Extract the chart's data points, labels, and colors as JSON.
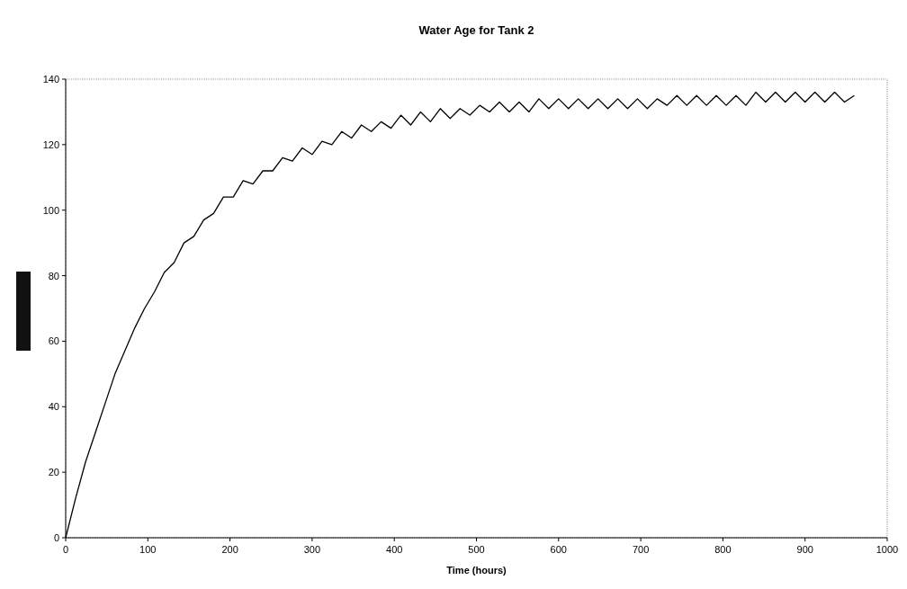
{
  "chart_data": {
    "type": "line",
    "title": "Water Age for Tank 2",
    "xlabel": "Time (hours)",
    "x": [
      0,
      12,
      24,
      36,
      48,
      60,
      72,
      84,
      96,
      108,
      120,
      132,
      144,
      156,
      168,
      180,
      192,
      204,
      216,
      228,
      240,
      252,
      264,
      276,
      288,
      300,
      312,
      324,
      336,
      348,
      360,
      372,
      384,
      396,
      408,
      420,
      432,
      444,
      456,
      468,
      480,
      492,
      504,
      516,
      528,
      540,
      552,
      564,
      576,
      588,
      600,
      612,
      624,
      636,
      648,
      660,
      672,
      684,
      696,
      708,
      720,
      732,
      744,
      756,
      768,
      780,
      792,
      804,
      816,
      828,
      840,
      852,
      864,
      876,
      888,
      900,
      912,
      924,
      936,
      948,
      960
    ],
    "series": [
      {
        "color": "#000000",
        "values": [
          0,
          12,
          23,
          32,
          41,
          50,
          57,
          64,
          70,
          75,
          81,
          84,
          90,
          92,
          97,
          99,
          104,
          104,
          109,
          108,
          112,
          112,
          116,
          115,
          119,
          117,
          121,
          120,
          124,
          122,
          126,
          124,
          127,
          125,
          129,
          126,
          130,
          127,
          131,
          128,
          131,
          129,
          132,
          130,
          133,
          130,
          133,
          130,
          134,
          131,
          134,
          131,
          134,
          131,
          134,
          131,
          134,
          131,
          134,
          131,
          134,
          132,
          135,
          132,
          135,
          132,
          135,
          132,
          135,
          132,
          136,
          133,
          136,
          133,
          136,
          133,
          136,
          133,
          136,
          133,
          135
        ]
      }
    ],
    "xlim": [
      0,
      1000
    ],
    "xticks": [
      0,
      100,
      200,
      300,
      400,
      500,
      600,
      700,
      800,
      900,
      1000
    ],
    "ylim": [
      0,
      140
    ],
    "yticks": [
      0,
      20,
      40,
      60,
      80,
      100,
      120,
      140
    ],
    "grid": false,
    "marker": "none",
    "line_style": "solid"
  }
}
